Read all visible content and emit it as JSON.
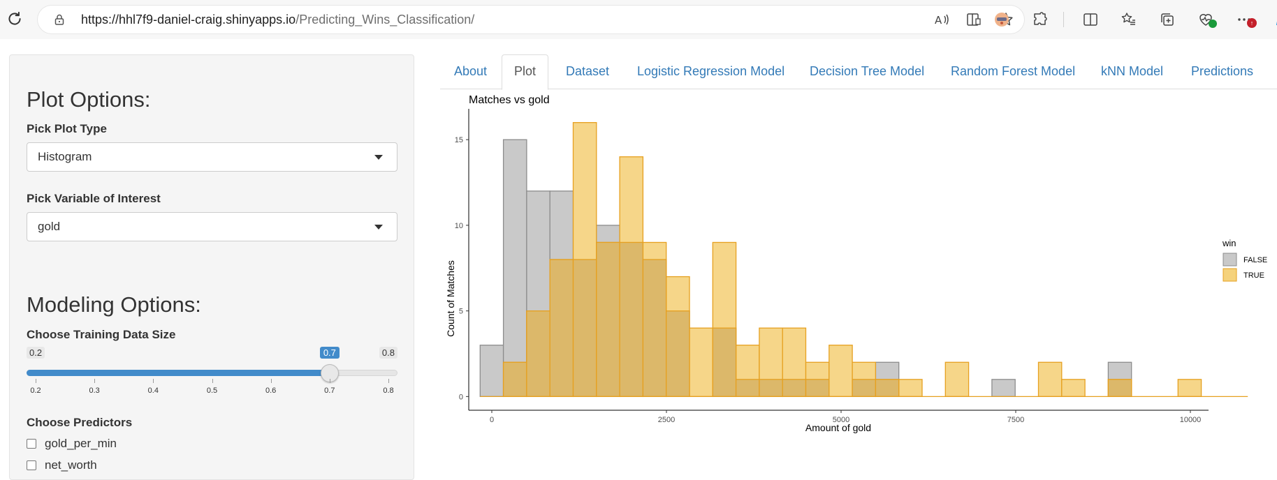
{
  "browser": {
    "url_host": "https://hhl7f9-daniel-craig.shinyapps.io",
    "url_path": "/Predicting_Wins_Classification/"
  },
  "sidebar": {
    "plot_heading": "Plot Options:",
    "plot_type_label": "Pick Plot Type",
    "plot_type_value": "Histogram",
    "variable_label": "Pick Variable of Interest",
    "variable_value": "gold",
    "modeling_heading": "Modeling Options:",
    "training_label": "Choose Training Data Size",
    "slider": {
      "min_label": "0.2",
      "max_label": "0.8",
      "current_label": "0.7",
      "min": 0.2,
      "max": 0.8,
      "value": 0.7,
      "ticks": [
        "0.2",
        "0.3",
        "0.4",
        "0.5",
        "0.6",
        "0.7",
        "0.8"
      ]
    },
    "predictors_label": "Choose Predictors",
    "predictors": [
      {
        "label": "gold_per_min",
        "checked": false
      },
      {
        "label": "net_worth",
        "checked": false
      }
    ]
  },
  "tabs": [
    {
      "label": "About",
      "active": false
    },
    {
      "label": "Plot",
      "active": true
    },
    {
      "label": "Dataset",
      "active": false
    },
    {
      "label": "Logistic Regression Model",
      "active": false
    },
    {
      "label": "Decision Tree Model",
      "active": false
    },
    {
      "label": "Random Forest Model",
      "active": false
    },
    {
      "label": "kNN Model",
      "active": false
    },
    {
      "label": "Predictions",
      "active": false
    }
  ],
  "colors": {
    "accent": "#428bca",
    "link": "#337ab7",
    "false_fill": "#c9c9c9",
    "false_stroke": "#8c8c8c",
    "true_fill": "#f5d27c",
    "true_stroke": "#e6a020",
    "overlap_fill": "#dcb86a"
  },
  "chart_data": {
    "type": "bar",
    "title": "Matches vs gold",
    "xlabel": "Amount of gold",
    "ylabel": "Count of Matches",
    "xlim": [
      -330,
      10260
    ],
    "ylim": [
      -0.8,
      16.8
    ],
    "x_ticks": [
      0,
      2500,
      5000,
      7500,
      10000
    ],
    "y_ticks": [
      0,
      5,
      10,
      15
    ],
    "bin_width": 333,
    "bin_start": -167,
    "legend": {
      "title": "win",
      "position": "right",
      "entries": [
        "FALSE",
        "TRUE"
      ]
    },
    "series": [
      {
        "name": "FALSE",
        "values": [
          3,
          15,
          12,
          12,
          8,
          10,
          9,
          8,
          5,
          0,
          4,
          1,
          1,
          1,
          1,
          0,
          1,
          2,
          0,
          0,
          0,
          0,
          1,
          0,
          0,
          0,
          0,
          2,
          0,
          0,
          0,
          0,
          0
        ]
      },
      {
        "name": "TRUE",
        "values": [
          0,
          2,
          5,
          8,
          16,
          9,
          14,
          9,
          7,
          4,
          9,
          3,
          4,
          4,
          2,
          3,
          2,
          1,
          1,
          0,
          2,
          0,
          0,
          0,
          2,
          1,
          0,
          1,
          0,
          0,
          1,
          0,
          0
        ]
      }
    ]
  }
}
